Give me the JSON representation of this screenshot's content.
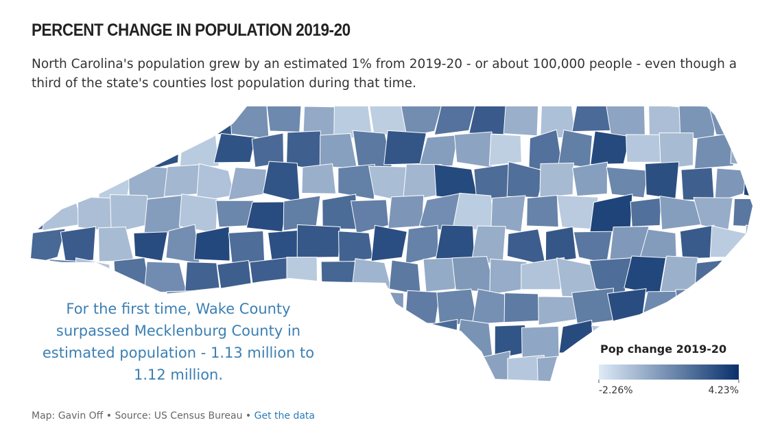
{
  "header": {
    "title": "PERCENT CHANGE IN POPULATION 2019-20",
    "subtitle": "North Carolina's population grew by an estimated 1% from 2019-20 - or about 100,000 people - even though a third of the state's counties lost population during that time."
  },
  "annotation": "For the first time, Wake County surpassed Mecklenburg County in estimated population - 1.13 million to 1.12 million.",
  "legend": {
    "title": "Pop change 2019-20",
    "min": {
      "value": -2.26,
      "label": "-2.26%"
    },
    "max": {
      "value": 4.23,
      "label": "4.23%"
    },
    "colors": [
      "#deebf7",
      "#08306b"
    ]
  },
  "footer": {
    "credit": "Map: Gavin Off • Source: US Census Bureau •",
    "link": "Get the data"
  }
}
